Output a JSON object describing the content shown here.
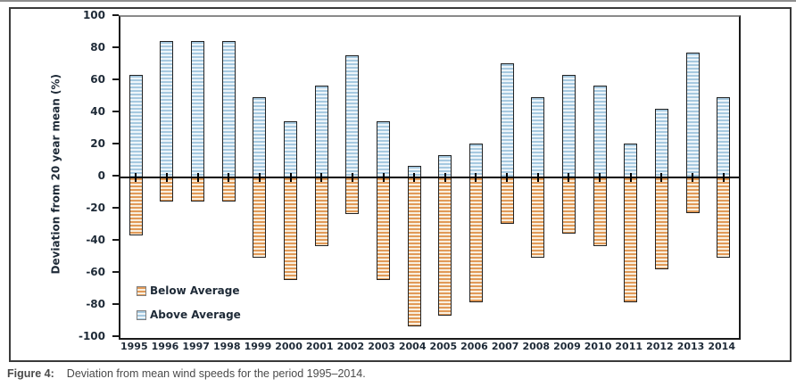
{
  "figure": {
    "caption_label": "Figure 4:",
    "caption_text": "Deviation from mean wind speeds for the period 1995–2014."
  },
  "colors": {
    "chart_text": "#1e2a37",
    "caption_text": "#4a4a4a",
    "axis_line": "#1a1a1a",
    "below_stripe": "#e19a58",
    "below_stripe_alt": "#f9efdf",
    "above_stripe": "#a6c9e0",
    "above_stripe_alt": "#edf5fa"
  },
  "chart_data": {
    "type": "bar",
    "title": "",
    "xlabel": "",
    "ylabel": "Deviation from 20 year mean (%)",
    "ylim": [
      -100,
      100
    ],
    "yticks": [
      100,
      80,
      60,
      40,
      20,
      0,
      -20,
      -40,
      -60,
      -80,
      -100
    ],
    "grid": false,
    "legend_position": "lower-left",
    "bar_pattern": "horizontal-stripes",
    "categories": [
      "1995",
      "1996",
      "1997",
      "1998",
      "1999",
      "2000",
      "2001",
      "2002",
      "2003",
      "2004",
      "2005",
      "2006",
      "2007",
      "2008",
      "2009",
      "2010",
      "2011",
      "2012",
      "2013",
      "2014"
    ],
    "series": [
      {
        "name": "Below Average",
        "stripe_color": "#e19a58",
        "stripe_alt": "#f9efdf",
        "values": [
          -36,
          -15,
          -15,
          -15,
          -50,
          -64,
          -43,
          -23,
          -64,
          -93,
          -86,
          -78,
          -29,
          -50,
          -35,
          -43,
          -78,
          -57,
          -22,
          -50
        ]
      },
      {
        "name": "Above Average",
        "stripe_color": "#a6c9e0",
        "stripe_alt": "#edf5fa",
        "values": [
          64,
          85,
          85,
          85,
          50,
          35,
          57,
          76,
          35,
          7,
          14,
          21,
          71,
          50,
          64,
          57,
          21,
          43,
          78,
          50
        ]
      }
    ]
  }
}
